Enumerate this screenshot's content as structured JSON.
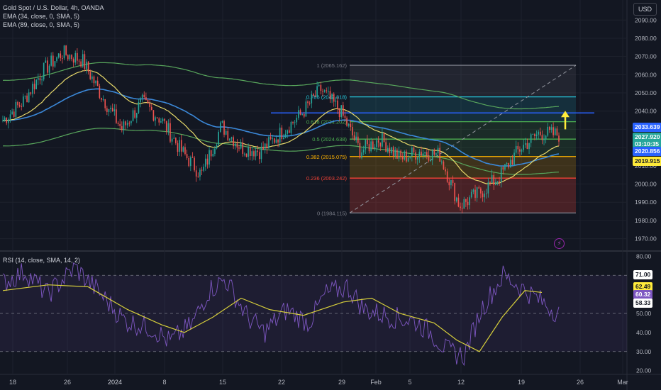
{
  "legend": {
    "title": "Gold Spot / U.S. Dollar, 4h, OANDA",
    "ema1": "EMA (34, close, 0, SMA, 5)",
    "ema2": "EMA (89, close, 0, SMA, 5)",
    "rsi": "RSI (14, close, SMA, 14, 2)"
  },
  "currency": "USD",
  "colors": {
    "up": "#26a69a",
    "down": "#ef5350",
    "ema34": "#e6d86a",
    "ema89": "#3b88d8",
    "envelope": "#58a65c",
    "rsi": "#7e57c2",
    "rsi_ma": "#d7cf3b"
  },
  "price_tags": [
    {
      "value": "2033.639",
      "bg": "#2962ff",
      "fg": "#ffffff"
    },
    {
      "value": "2027.920",
      "bg": "#26a69a",
      "fg": "#ffffff"
    },
    {
      "value": "03:10:35",
      "bg": "#26a69a",
      "fg": "#ffffff"
    },
    {
      "value": "2020.856",
      "bg": "#2962ff",
      "fg": "#ffffff"
    },
    {
      "value": "2019.915",
      "bg": "#ffeb3b",
      "fg": "#131722"
    }
  ],
  "rsi_tags": [
    {
      "value": "71.00",
      "bg": "#ffffff",
      "fg": "#131722"
    },
    {
      "value": "62.49",
      "bg": "#ffeb3b",
      "fg": "#131722"
    },
    {
      "value": "60.32",
      "bg": "#7e57c2",
      "fg": "#ffffff"
    },
    {
      "value": "58.33",
      "bg": "#ffffff",
      "fg": "#131722"
    }
  ],
  "chart_data": [
    {
      "type": "candlestick",
      "title": "Gold Spot / U.S. Dollar, 4h, OANDA",
      "ylim": [
        1964,
        2101
      ],
      "y_ticks": [
        1970,
        1980,
        1990,
        2000,
        2010,
        2020,
        2030,
        2040,
        2050,
        2060,
        2070,
        2080,
        2090
      ],
      "x_ticks": [
        "18",
        "26",
        "2024",
        "8",
        "15",
        "22",
        "29",
        "Feb",
        "5",
        "12",
        "19",
        "26",
        "Mar"
      ],
      "price_path": [
        [
          2025,
          2035
        ],
        [
          2055,
          2045
        ],
        [
          2082,
          2062
        ],
        [
          2090,
          2072
        ],
        [
          2062,
          2068
        ],
        [
          2041,
          2048
        ],
        [
          2028,
          2030
        ],
        [
          2055,
          2045
        ],
        [
          2026,
          2035
        ],
        [
          2022,
          2018
        ],
        [
          2012,
          2005
        ],
        [
          2028,
          2032
        ],
        [
          2023,
          2020
        ],
        [
          2017,
          2018
        ],
        [
          2030,
          2028
        ],
        [
          2042,
          2038
        ],
        [
          2062,
          2052
        ],
        [
          2052,
          2040
        ],
        [
          2015,
          2018
        ],
        [
          2028,
          2025
        ],
        [
          2016,
          2014
        ],
        [
          2023,
          2018
        ],
        [
          2014,
          2016
        ],
        [
          1998,
          1988
        ],
        [
          1986,
          1995
        ],
        [
          2003,
          2004
        ],
        [
          2020,
          2019
        ],
        [
          2030,
          2028
        ],
        [
          2028,
          2027
        ]
      ],
      "fib_levels": [
        {
          "label": "1 (2065.162)",
          "value": 2065.162,
          "color": "#787b86"
        },
        {
          "label": "0.786 (2047.818)",
          "value": 2047.818,
          "color": "#26c6da"
        },
        {
          "label": "0.618 (2034.202)",
          "value": 2034.202,
          "color": "#4caf50"
        },
        {
          "label": "0.5 (2024.638)",
          "value": 2024.638,
          "color": "#4caf50"
        },
        {
          "label": "0.382 (2015.075)",
          "value": 2015.075,
          "color": "#ffb300"
        },
        {
          "label": "0.236 (2003.242)",
          "value": 2003.242,
          "color": "#f44336"
        },
        {
          "label": "0 (1984.115)",
          "value": 1984.115,
          "color": "#787b86"
        }
      ],
      "horizontal_line": {
        "value": 2039,
        "color": "#2962ff"
      },
      "arrow": {
        "from": 2030,
        "to": 2039,
        "color": "#ffeb3b"
      }
    },
    {
      "type": "line",
      "title": "RSI (14, close, SMA, 14, 2)",
      "ylim": [
        18,
        82
      ],
      "y_ticks": [
        20,
        30,
        40,
        50,
        60,
        70,
        80
      ],
      "bands": [
        30,
        50,
        70
      ],
      "rsi_path": [
        [
          0,
          66
        ],
        [
          0.04,
          72
        ],
        [
          0.08,
          60
        ],
        [
          0.13,
          74
        ],
        [
          0.17,
          62
        ],
        [
          0.22,
          46
        ],
        [
          0.27,
          42
        ],
        [
          0.3,
          35
        ],
        [
          0.34,
          44
        ],
        [
          0.37,
          62
        ],
        [
          0.4,
          68
        ],
        [
          0.44,
          48
        ],
        [
          0.47,
          40
        ],
        [
          0.51,
          52
        ],
        [
          0.55,
          45
        ],
        [
          0.58,
          60
        ],
        [
          0.62,
          64
        ],
        [
          0.65,
          52
        ],
        [
          0.7,
          48
        ],
        [
          0.74,
          46
        ],
        [
          0.77,
          40
        ],
        [
          0.8,
          30
        ],
        [
          0.83,
          28
        ],
        [
          0.86,
          52
        ],
        [
          0.9,
          70
        ],
        [
          0.94,
          62
        ]
      ],
      "rsi_ma_path": [
        [
          0,
          62
        ],
        [
          0.08,
          65
        ],
        [
          0.15,
          64
        ],
        [
          0.22,
          52
        ],
        [
          0.28,
          44
        ],
        [
          0.32,
          40
        ],
        [
          0.37,
          48
        ],
        [
          0.42,
          58
        ],
        [
          0.47,
          52
        ],
        [
          0.53,
          49
        ],
        [
          0.6,
          56
        ],
        [
          0.65,
          58
        ],
        [
          0.7,
          50
        ],
        [
          0.76,
          45
        ],
        [
          0.8,
          36
        ],
        [
          0.84,
          30
        ],
        [
          0.88,
          48
        ],
        [
          0.92,
          62
        ],
        [
          0.95,
          61
        ]
      ]
    }
  ]
}
